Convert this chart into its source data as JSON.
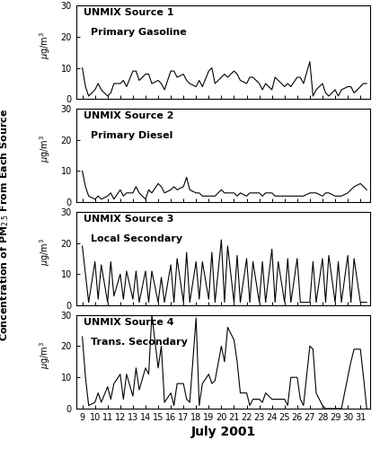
{
  "xlabel": "July 2001",
  "panels": [
    {
      "label1": "UNMIX Source 1",
      "label2": "Primary Gasoline",
      "ylim": [
        0,
        30
      ],
      "yticks": [
        0,
        10,
        20,
        30
      ]
    },
    {
      "label1": "UNMIX Source 2",
      "label2": "Primary Diesel",
      "ylim": [
        0,
        30
      ],
      "yticks": [
        0,
        10,
        20,
        30
      ]
    },
    {
      "label1": "UNMIX Source 3",
      "label2": "Local Secondary",
      "ylim": [
        0,
        30
      ],
      "yticks": [
        0,
        10,
        20,
        30
      ]
    },
    {
      "label1": "UNMIX Source 4",
      "label2": "Trans. Secondary",
      "ylim": [
        0,
        30
      ],
      "yticks": [
        0,
        10,
        20,
        30
      ]
    }
  ],
  "days": [
    9,
    10,
    11,
    12,
    13,
    14,
    15,
    16,
    17,
    18,
    19,
    20,
    21,
    22,
    23,
    24,
    25,
    26,
    27,
    28,
    29,
    30,
    31
  ],
  "source1": [
    10,
    4,
    1,
    3,
    5,
    3,
    1,
    2,
    5,
    5,
    6,
    4,
    9,
    9,
    6,
    8,
    8,
    5,
    6,
    5,
    3,
    9,
    9,
    7,
    8,
    6,
    5,
    4,
    6,
    4,
    9,
    10,
    5,
    7,
    8,
    7,
    9,
    8,
    6,
    5,
    7,
    7,
    5,
    3,
    5,
    3,
    7,
    6,
    4,
    5,
    4,
    7,
    7,
    5,
    12,
    1,
    3,
    5,
    2,
    1,
    3,
    1,
    3,
    4,
    4,
    2,
    4,
    5,
    5
  ],
  "source2": [
    10,
    5,
    2,
    1,
    2,
    1,
    2,
    3,
    1,
    4,
    2,
    3,
    3,
    5,
    3,
    1,
    4,
    3,
    6,
    5,
    3,
    4,
    5,
    4,
    5,
    8,
    4,
    3,
    3,
    2,
    2,
    2,
    2,
    4,
    3,
    3,
    3,
    2,
    3,
    2,
    3,
    3,
    3,
    2,
    3,
    3,
    2,
    2,
    2,
    2,
    2,
    2,
    2,
    2,
    3,
    3,
    3,
    2,
    3,
    3,
    2,
    2,
    2,
    3,
    4,
    5,
    6,
    5,
    4
  ],
  "source3": [
    19,
    10,
    1,
    14,
    2,
    13,
    1,
    14,
    3,
    10,
    2,
    11,
    2,
    11,
    1,
    11,
    1,
    11,
    1,
    9,
    1,
    13,
    1,
    15,
    1,
    17,
    1,
    14,
    2,
    14,
    2,
    17,
    1,
    21,
    1,
    19,
    1,
    16,
    1,
    15,
    1,
    14,
    1,
    14,
    1,
    18,
    1,
    14,
    1,
    15,
    1,
    15,
    1,
    1,
    1,
    14,
    1,
    15,
    1,
    16,
    1,
    14,
    1,
    16,
    1,
    15,
    1,
    1,
    1
  ],
  "source4": [
    23,
    10,
    1,
    2,
    5,
    2,
    7,
    3,
    8,
    11,
    3,
    11,
    4,
    13,
    6,
    13,
    11,
    30,
    13,
    20,
    2,
    5,
    1,
    8,
    8,
    3,
    2,
    29,
    1,
    8,
    11,
    8,
    9,
    20,
    15,
    26,
    22,
    15,
    5,
    5,
    1,
    3,
    3,
    2,
    5,
    3,
    3,
    3,
    3,
    1,
    10,
    10,
    3,
    1,
    20,
    19,
    5,
    1,
    0,
    0,
    0,
    0,
    0,
    10,
    15,
    19,
    19,
    10,
    0
  ],
  "line_color": "#000000",
  "bg_color": "#ffffff",
  "tick_fontsize": 7,
  "label_fontsize": 8,
  "linewidth": 0.8
}
